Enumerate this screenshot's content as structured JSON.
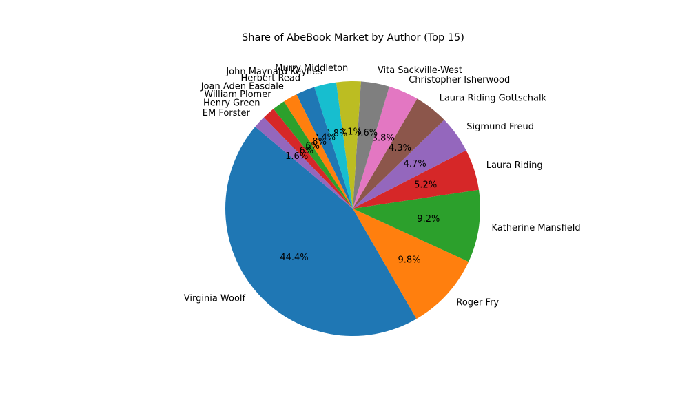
{
  "chart_data": {
    "type": "pie",
    "title": "Share of AbeBook Market by Author (Top 15)",
    "start_angle_deg": 140,
    "direction": "counterclockwise",
    "slices": [
      {
        "label": "Virginia Woolf",
        "value": 44.4,
        "pct_label": "44.4%",
        "color": "#1f77b4"
      },
      {
        "label": "Roger Fry",
        "value": 9.8,
        "pct_label": "9.8%",
        "color": "#ff7f0e"
      },
      {
        "label": "Katherine Mansfield",
        "value": 9.2,
        "pct_label": "9.2%",
        "color": "#2ca02c"
      },
      {
        "label": "Laura Riding",
        "value": 5.2,
        "pct_label": "5.2%",
        "color": "#d62728"
      },
      {
        "label": "Sigmund Freud",
        "value": 4.7,
        "pct_label": "4.7%",
        "color": "#9467bd"
      },
      {
        "label": "Laura Riding Gottschalk",
        "value": 4.3,
        "pct_label": "4.3%",
        "color": "#8c564b"
      },
      {
        "label": "Christopher Isherwood",
        "value": 3.8,
        "pct_label": "3.8%",
        "color": "#e377c2"
      },
      {
        "label": "Vita Sackville-West",
        "value": 3.6,
        "pct_label": "3.6%",
        "color": "#7f7f7f"
      },
      {
        "label": "Murry Middleton",
        "value": 3.1,
        "pct_label": "3.1%",
        "color": "#bcbd22"
      },
      {
        "label": "John Maynard Keynes",
        "value": 2.8,
        "pct_label": "2.8%",
        "color": "#17becf"
      },
      {
        "label": "Herbert Read",
        "value": 2.4,
        "pct_label": "2.4%",
        "color": "#1f77b4"
      },
      {
        "label": "Joan Aden Easdale",
        "value": 1.8,
        "pct_label": "1.8%",
        "color": "#ff7f0e"
      },
      {
        "label": "William Plomer",
        "value": 1.6,
        "pct_label": "1.6%",
        "color": "#2ca02c"
      },
      {
        "label": "Henry Green",
        "value": 1.6,
        "pct_label": "1.6%",
        "color": "#d62728"
      },
      {
        "label": "EM Forster",
        "value": 1.6,
        "pct_label": "1.6%",
        "color": "#9467bd"
      }
    ]
  }
}
